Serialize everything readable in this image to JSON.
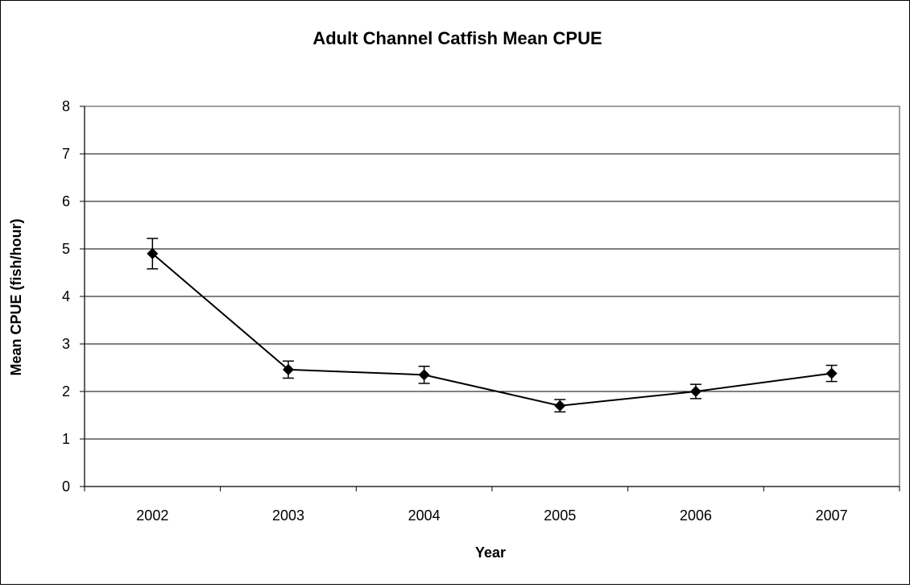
{
  "chart_data": {
    "type": "line",
    "title": "Adult Channel Catfish Mean CPUE",
    "xlabel": "Year",
    "ylabel": "Mean CPUE (fish/hour)",
    "categories": [
      "2002",
      "2003",
      "2004",
      "2005",
      "2006",
      "2007"
    ],
    "values": [
      4.9,
      2.46,
      2.35,
      1.7,
      2.0,
      2.38
    ],
    "error": [
      0.32,
      0.18,
      0.18,
      0.13,
      0.15,
      0.17
    ],
    "ylim": [
      0,
      8
    ],
    "yticks": [
      "0",
      "1",
      "2",
      "3",
      "4",
      "5",
      "6",
      "7",
      "8"
    ],
    "grid": true,
    "legend": "none",
    "colors": {
      "line": "#000000",
      "grid": "#000000",
      "plot_border": "#808080"
    }
  }
}
